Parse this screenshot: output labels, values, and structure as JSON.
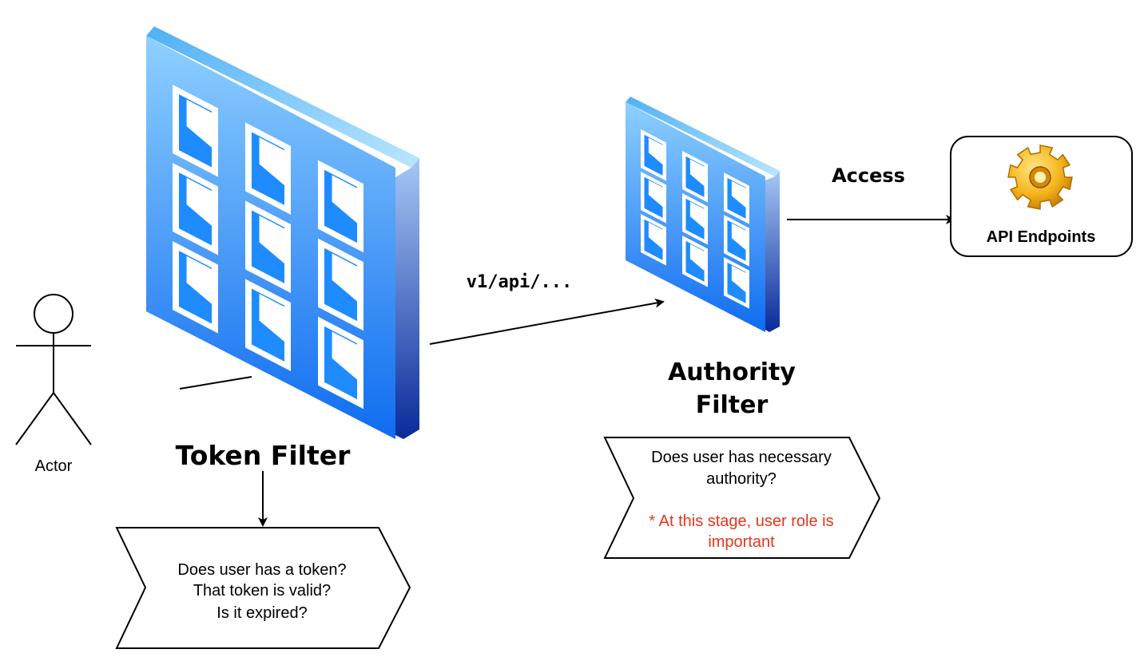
{
  "actor": {
    "label": "Actor"
  },
  "token_filter": {
    "title": "Token Filter",
    "note_lines": [
      "Does user has a token?",
      "That token is valid?",
      "Is it expired?"
    ]
  },
  "request_path": "v1/api/...",
  "authority_filter": {
    "title_line1": "Authority",
    "title_line2": "Filter",
    "note_lines": [
      "Does user has necessary",
      "authority?"
    ],
    "warning_lines": [
      "* At this stage, user role is",
      "important"
    ]
  },
  "access_label": "Access",
  "api_endpoints": {
    "label": "API Endpoints"
  },
  "colors": {
    "firewall_top": "#8fd0ff",
    "firewall_bottom": "#0f6cf0",
    "firewall_side_top": "#8fb8f0",
    "firewall_side_bottom": "#0a2a9a",
    "window_inner": "#1e8cff",
    "warning_text": "#e8341c",
    "stroke": "#000000"
  },
  "icons": {
    "endpoint": "gear-icon",
    "filter": "firewall-icon",
    "actor": "stick-figure-icon"
  }
}
